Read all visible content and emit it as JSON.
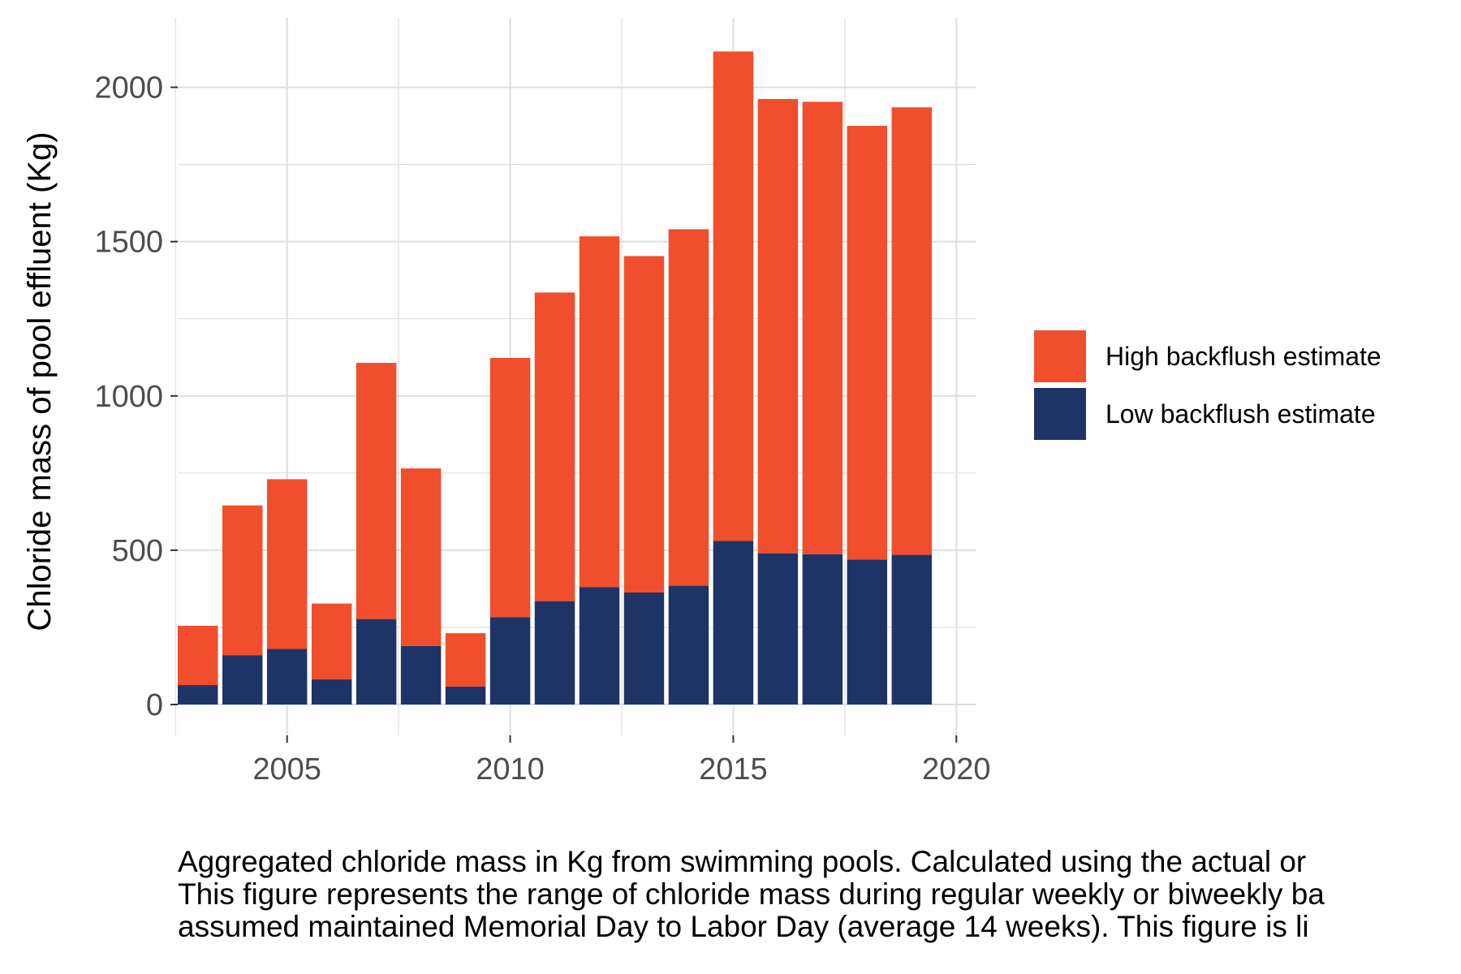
{
  "chart_data": {
    "type": "bar",
    "stacked": true,
    "x": [
      2003,
      2004,
      2005,
      2006,
      2007,
      2008,
      2009,
      2010,
      2011,
      2012,
      2013,
      2014,
      2015,
      2016,
      2017,
      2018,
      2019
    ],
    "series": [
      {
        "name": "Low backflush estimate",
        "color": "#1f3466",
        "values": [
          63,
          160,
          180,
          82,
          277,
          190,
          58,
          283,
          335,
          380,
          363,
          385,
          530,
          490,
          487,
          470,
          485
        ]
      },
      {
        "name": "High backflush estimate",
        "color": "#f04e2c",
        "values": [
          192,
          485,
          550,
          245,
          830,
          575,
          173,
          840,
          1000,
          1137,
          1090,
          1155,
          1586,
          1472,
          1466,
          1405,
          1450
        ]
      }
    ],
    "totals": [
      255,
      645,
      730,
      327,
      1107,
      765,
      231,
      1123,
      1335,
      1517,
      1453,
      1540,
      2116,
      1962,
      1953,
      1875,
      1935
    ],
    "xticks": [
      "2005",
      "2010",
      "2015",
      "2020"
    ],
    "xlim": [
      2002.55,
      2020.45
    ],
    "ylim": [
      -100,
      2225
    ],
    "yticks": [
      "0",
      "500",
      "1000",
      "1500",
      "2000"
    ],
    "ylabel": "Chloride mass of pool effluent (Kg)",
    "xlabel": "",
    "title": "",
    "legend": {
      "position": "right",
      "entries": [
        "High backflush estimate",
        "Low backflush estimate"
      ]
    },
    "grid": true,
    "background": "#ffffff",
    "gridline_color": "#dedede"
  },
  "caption": {
    "lines": [
      "Aggregated chloride mass in Kg from swimming pools. Calculated using the actual or",
      "This figure represents the range of chloride mass during regular weekly or biweekly ba",
      "assumed maintained Memorial Day to Labor Day (average 14 weeks). This figure is li"
    ]
  }
}
